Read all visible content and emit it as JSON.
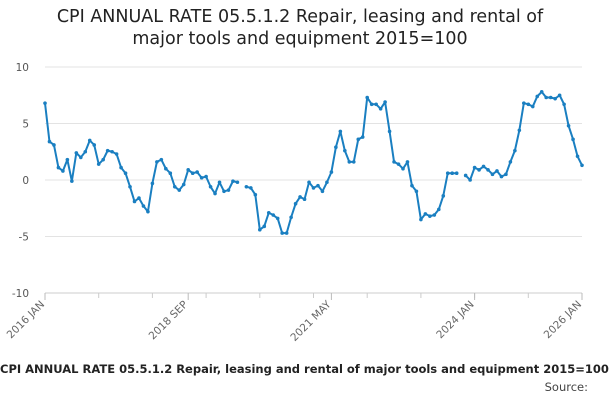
{
  "chart_data": {
    "type": "line",
    "title_lines": [
      "CPI ANNUAL RATE 05.5.1.2 Repair, leasing and rental of",
      "major tools and equipment 2015=100"
    ],
    "series": [
      {
        "name": "CPI ANNUAL RATE 05.5.1.2 Repair, leasing and rental of major tools and equipment 2015=100",
        "color": "#1a7fc1",
        "start": "2016-01",
        "values": [
          6.8,
          3.4,
          3.1,
          1.1,
          0.8,
          1.8,
          -0.1,
          2.4,
          2.0,
          2.5,
          3.5,
          3.1,
          1.4,
          1.8,
          2.6,
          2.5,
          2.3,
          1.1,
          0.6,
          -0.6,
          -1.9,
          -1.6,
          -2.3,
          -2.8,
          -0.3,
          1.6,
          1.8,
          1.0,
          0.6,
          -0.6,
          -0.9,
          -0.4,
          0.9,
          0.6,
          0.7,
          0.2,
          0.3,
          -0.6,
          -1.2,
          -0.2,
          -1.0,
          -0.9,
          -0.1,
          -0.2,
          null,
          -0.6,
          -0.7,
          -1.3,
          -4.4,
          -4.1,
          -2.9,
          -3.1,
          -3.4,
          -4.7,
          -4.7,
          -3.3,
          -2.1,
          -1.5,
          -1.7,
          -0.2,
          -0.7,
          -0.5,
          -1.0,
          -0.2,
          0.7,
          2.9,
          4.3,
          2.6,
          1.6,
          1.6,
          3.6,
          3.8,
          7.3,
          6.7,
          6.7,
          6.3,
          6.9,
          4.3,
          1.6,
          1.4,
          1.0,
          1.6,
          -0.5,
          -1.0,
          -3.5,
          -3.0,
          -3.2,
          -3.1,
          -2.6,
          -1.4,
          0.6,
          0.6,
          0.6,
          null,
          0.4,
          0.0,
          1.1,
          0.9,
          1.2,
          0.9,
          0.5,
          0.8,
          0.3,
          0.5,
          1.6,
          2.6,
          4.4,
          6.8,
          6.7,
          6.5,
          7.4,
          7.8,
          7.3,
          7.3,
          7.2,
          7.5,
          6.7,
          4.8,
          3.6,
          2.1,
          1.3
        ]
      }
    ],
    "x_ticks": [
      "2016 JAN",
      "2018 SEP",
      "2021 MAY",
      "2024 JAN",
      "2026 JAN"
    ],
    "x_tick_months": [
      0,
      32,
      64,
      96,
      120
    ],
    "y_ticks": [
      10,
      5,
      0,
      -5,
      -10
    ],
    "ylim": [
      -10,
      10
    ],
    "grid": true,
    "legend_position": "bottom",
    "source_label": "Source:"
  }
}
